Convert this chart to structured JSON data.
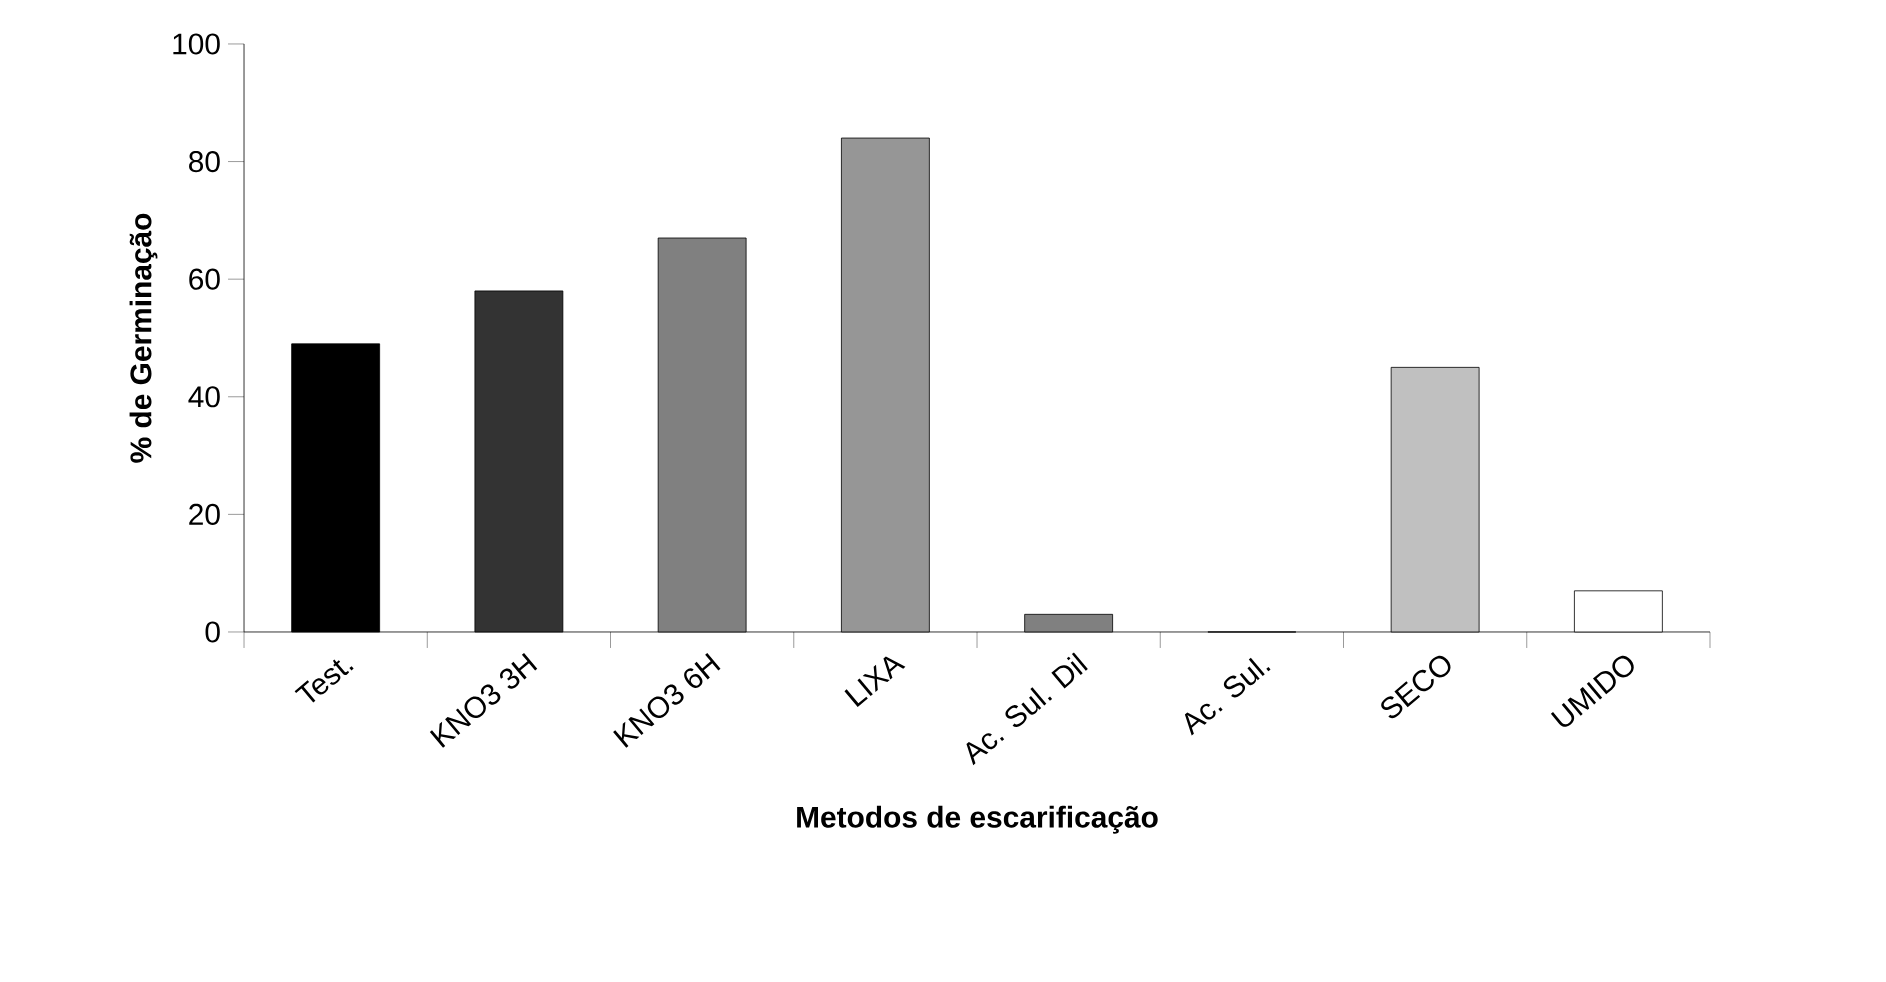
{
  "chart_data": {
    "type": "bar",
    "xlabel": "Metodos de escarificação",
    "ylabel": "% de Germinação",
    "categories": [
      "Test.",
      "KNO3 3H",
      "KNO3 6H",
      "LIXA",
      "Ac. Sul. Dil",
      "Ac. Sul.",
      "SECO",
      "UMIDO"
    ],
    "values": [
      49,
      58,
      67,
      84,
      3,
      0,
      45,
      7
    ],
    "colors": [
      "#000000",
      "#333333",
      "#808080",
      "#969696",
      "#808080",
      "#808080",
      "#c0c0c0",
      "#ffffff"
    ],
    "ylim": [
      0,
      100
    ],
    "yticks": [
      0,
      20,
      40,
      60,
      80,
      100
    ],
    "grid": false
  }
}
